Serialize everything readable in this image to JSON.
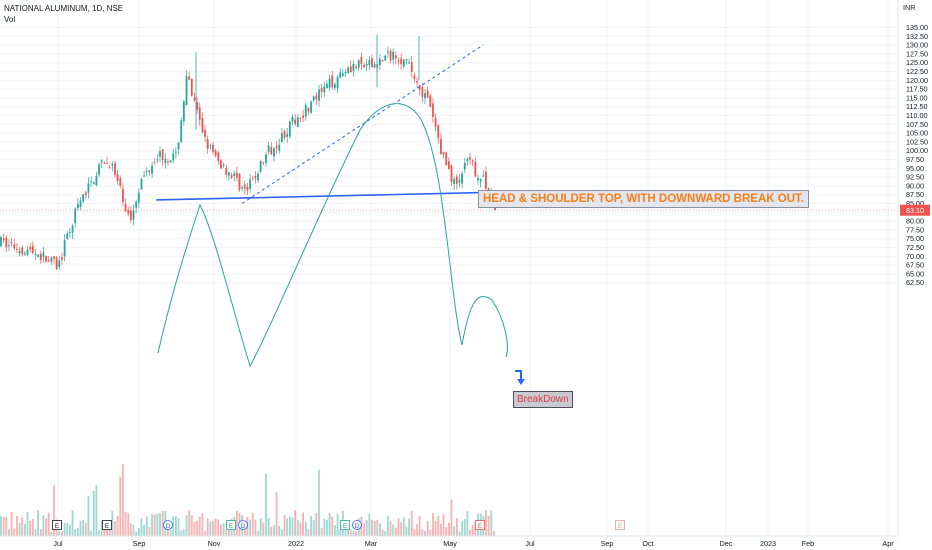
{
  "header": {
    "title": "NATIONAL ALUMINUM, 1D, NSE",
    "vol_label": "Vol"
  },
  "annotations": {
    "pattern_text": "HEAD & SHOULDER TOP, WITH DOWNWARD BREAK OUT.",
    "breakdown_text": "BreakDown"
  },
  "colors": {
    "up": "#26a69a",
    "down": "#ef5350",
    "neckline": "#2962ff",
    "curve": "#26a69a",
    "pattern_text": "#f57f17",
    "breakdown_text": "#e03a3a",
    "price_label_bg": "#ef5350"
  },
  "icons": [
    "event-e-icon",
    "dividend-d-icon",
    "earnings-e-icon"
  ],
  "chart_data": {
    "type": "candlestick",
    "currency": "INR",
    "ylim": [
      62.5,
      137.5
    ],
    "y_ticks": [
      "62.50",
      "65.00",
      "67.50",
      "70.00",
      "72.50",
      "75.00",
      "77.50",
      "80.00",
      "82.50",
      "85.00",
      "87.50",
      "90.00",
      "92.50",
      "95.00",
      "97.50",
      "100.00",
      "102.50",
      "105.00",
      "107.50",
      "110.00",
      "112.50",
      "115.00",
      "117.50",
      "120.00",
      "122.50",
      "125.00",
      "127.50",
      "130.00",
      "132.50",
      "135.00"
    ],
    "x_ticks": [
      "Jul",
      "Sep",
      "Nov",
      "2022",
      "Mar",
      "May",
      "Jul",
      "Sep",
      "Oct",
      "Dec",
      "2023",
      "Feb",
      "Apr"
    ],
    "last_price": "83.10",
    "approx_closes": [
      {
        "date": "2021-06",
        "value": 74
      },
      {
        "date": "2021-06-20",
        "value": 71
      },
      {
        "date": "2021-07-01",
        "value": 67
      },
      {
        "date": "2021-07-15",
        "value": 83
      },
      {
        "date": "2021-08-01",
        "value": 95
      },
      {
        "date": "2021-08-10",
        "value": 97
      },
      {
        "date": "2021-08-25",
        "value": 80
      },
      {
        "date": "2021-09-01",
        "value": 90
      },
      {
        "date": "2021-09-15",
        "value": 99
      },
      {
        "date": "2021-10-01",
        "value": 98
      },
      {
        "date": "2021-10-10",
        "value": 121
      },
      {
        "date": "2021-10-20",
        "value": 108
      },
      {
        "date": "2021-11-01",
        "value": 98
      },
      {
        "date": "2021-11-15",
        "value": 93
      },
      {
        "date": "2021-11-25",
        "value": 88
      },
      {
        "date": "2021-12-10",
        "value": 99
      },
      {
        "date": "2022-01-01",
        "value": 109
      },
      {
        "date": "2022-01-20",
        "value": 116
      },
      {
        "date": "2022-02-10",
        "value": 124
      },
      {
        "date": "2022-03-01",
        "value": 124
      },
      {
        "date": "2022-03-20",
        "value": 128
      },
      {
        "date": "2022-04-01",
        "value": 123
      },
      {
        "date": "2022-04-15",
        "value": 113
      },
      {
        "date": "2022-04-25",
        "value": 99
      },
      {
        "date": "2022-05-05",
        "value": 90
      },
      {
        "date": "2022-05-15",
        "value": 97
      },
      {
        "date": "2022-05-25",
        "value": 92
      },
      {
        "date": "2022-06-03",
        "value": 87
      },
      {
        "date": "2022-06-06",
        "value": 83.1
      }
    ],
    "neckline": {
      "from": {
        "date": "2021-09",
        "value": 86
      },
      "to": {
        "date": "2022-06",
        "value": 88.5
      }
    },
    "trendline_dotted": {
      "from": {
        "date": "2021-11",
        "value": 85
      },
      "to": {
        "date": "2022-06",
        "value": 130
      }
    }
  }
}
